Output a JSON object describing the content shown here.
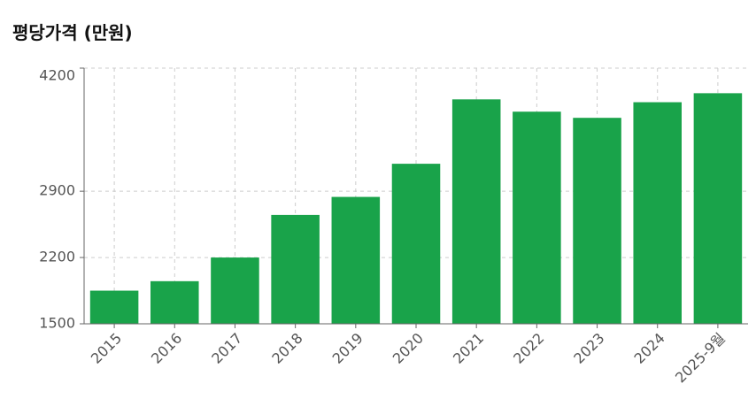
{
  "chart_data": {
    "type": "bar",
    "title": "평당가격 (만원)",
    "categories": [
      "2015",
      "2016",
      "2017",
      "2018",
      "2019",
      "2020",
      "2021",
      "2022",
      "2023",
      "2024",
      "2025-9월"
    ],
    "values": [
      1850,
      1950,
      2200,
      2650,
      2840,
      3190,
      3870,
      3740,
      3675,
      3840,
      3935
    ],
    "color": "#19a34a",
    "ylim": [
      1500,
      4200
    ],
    "yticks": [
      1500,
      2200,
      2900,
      4200
    ],
    "grid": true
  }
}
